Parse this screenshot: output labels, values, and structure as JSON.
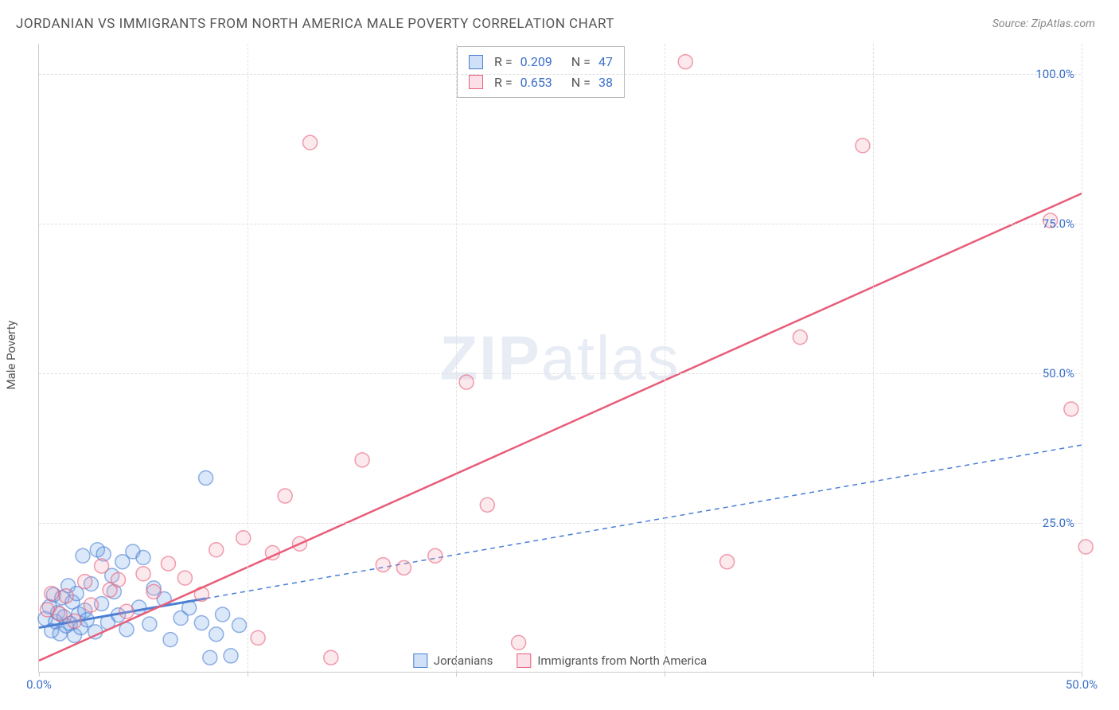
{
  "title": "JORDANIAN VS IMMIGRANTS FROM NORTH AMERICA MALE POVERTY CORRELATION CHART",
  "source": "Source: ZipAtlas.com",
  "y_axis_label": "Male Poverty",
  "watermark": {
    "bold": "ZIP",
    "light": "atlas"
  },
  "chart": {
    "type": "scatter",
    "x_range": [
      0,
      50
    ],
    "y_range": [
      0,
      105
    ],
    "x_ticks": [
      0,
      10,
      20,
      30,
      40,
      50
    ],
    "x_tick_labels": [
      "0.0%",
      "",
      "",
      "",
      "",
      "50.0%"
    ],
    "y_ticks": [
      25,
      50,
      75,
      100
    ],
    "y_tick_labels": [
      "25.0%",
      "50.0%",
      "75.0%",
      "100.0%"
    ],
    "background_color": "#ffffff",
    "grid_color": "#e0e0e0",
    "marker_radius": 9,
    "marker_fill_opacity": 0.25,
    "marker_stroke_width": 1.5,
    "series": [
      {
        "name": "Jordanians",
        "color": "#6ea3e8",
        "stroke": "#4a7fd4",
        "R": "0.209",
        "N": "47",
        "trend": {
          "x1": 0,
          "y1": 7.5,
          "x2": 50,
          "y2": 38,
          "solid_to_x": 8,
          "width_solid": 3,
          "width_dash": 1.5,
          "dash": "6,5"
        },
        "points": [
          [
            0.3,
            9
          ],
          [
            0.5,
            11
          ],
          [
            0.6,
            7
          ],
          [
            0.7,
            13
          ],
          [
            0.8,
            8.5
          ],
          [
            0.9,
            10
          ],
          [
            1.0,
            6.5
          ],
          [
            1.1,
            12.5
          ],
          [
            1.2,
            9.3
          ],
          [
            1.3,
            7.8
          ],
          [
            1.4,
            14.5
          ],
          [
            1.5,
            8.2
          ],
          [
            1.6,
            11.8
          ],
          [
            1.7,
            6.2
          ],
          [
            1.8,
            13.2
          ],
          [
            1.9,
            9.8
          ],
          [
            2.0,
            7.5
          ],
          [
            2.1,
            19.5
          ],
          [
            2.2,
            10.4
          ],
          [
            2.3,
            8.8
          ],
          [
            2.5,
            14.8
          ],
          [
            2.7,
            6.8
          ],
          [
            2.8,
            20.5
          ],
          [
            3.0,
            11.5
          ],
          [
            3.1,
            19.8
          ],
          [
            3.3,
            8.4
          ],
          [
            3.5,
            16.2
          ],
          [
            3.6,
            13.5
          ],
          [
            3.8,
            9.6
          ],
          [
            4.0,
            18.5
          ],
          [
            4.2,
            7.2
          ],
          [
            4.5,
            20.2
          ],
          [
            4.8,
            10.9
          ],
          [
            5.0,
            19.2
          ],
          [
            5.3,
            8.1
          ],
          [
            5.5,
            14.1
          ],
          [
            6.0,
            12.3
          ],
          [
            6.3,
            5.5
          ],
          [
            6.8,
            9.1
          ],
          [
            7.2,
            10.8
          ],
          [
            7.8,
            8.3
          ],
          [
            8.0,
            32.5
          ],
          [
            8.2,
            2.5
          ],
          [
            8.5,
            6.4
          ],
          [
            8.8,
            9.7
          ],
          [
            9.2,
            2.8
          ],
          [
            9.6,
            7.9
          ]
        ]
      },
      {
        "name": "Immigrants from North America",
        "color": "#f4a6b8",
        "stroke": "#e85d7a",
        "R": "0.653",
        "N": "38",
        "trend": {
          "x1": 0,
          "y1": 2,
          "x2": 50,
          "y2": 80,
          "solid_to_x": 50,
          "width_solid": 2.5,
          "width_dash": 0,
          "dash": ""
        },
        "points": [
          [
            0.4,
            10.5
          ],
          [
            0.6,
            13.2
          ],
          [
            1.0,
            9.8
          ],
          [
            1.3,
            12.8
          ],
          [
            1.7,
            8.6
          ],
          [
            2.2,
            15.2
          ],
          [
            2.5,
            11.3
          ],
          [
            3.0,
            17.8
          ],
          [
            3.4,
            13.8
          ],
          [
            3.8,
            15.5
          ],
          [
            4.2,
            10.2
          ],
          [
            5.0,
            16.5
          ],
          [
            5.5,
            13.5
          ],
          [
            6.2,
            18.2
          ],
          [
            7.0,
            15.8
          ],
          [
            7.8,
            13.1
          ],
          [
            8.5,
            20.5
          ],
          [
            9.8,
            22.5
          ],
          [
            10.5,
            5.8
          ],
          [
            11.2,
            20.0
          ],
          [
            11.8,
            29.5
          ],
          [
            12.5,
            21.5
          ],
          [
            13.0,
            88.5
          ],
          [
            14.0,
            2.5
          ],
          [
            15.5,
            35.5
          ],
          [
            16.5,
            18.0
          ],
          [
            17.5,
            17.5
          ],
          [
            19.0,
            19.5
          ],
          [
            20.5,
            48.5
          ],
          [
            21.5,
            28.0
          ],
          [
            23.0,
            5.0
          ],
          [
            31.0,
            102.0
          ],
          [
            33.0,
            18.5
          ],
          [
            36.5,
            56.0
          ],
          [
            39.5,
            88.0
          ],
          [
            48.5,
            75.5
          ],
          [
            49.5,
            44.0
          ],
          [
            50.2,
            21.0
          ]
        ]
      }
    ]
  },
  "stats_box": {
    "R_label": "R =",
    "N_label": "N ="
  },
  "legend": {
    "items": [
      {
        "label": "Jordanians",
        "color": "#6ea3e8",
        "stroke": "#4a7fd4"
      },
      {
        "label": "Immigrants from North America",
        "color": "#f4a6b8",
        "stroke": "#e85d7a"
      }
    ]
  },
  "colors": {
    "axis_text": "#3b6fc9",
    "body_text": "#555555"
  }
}
